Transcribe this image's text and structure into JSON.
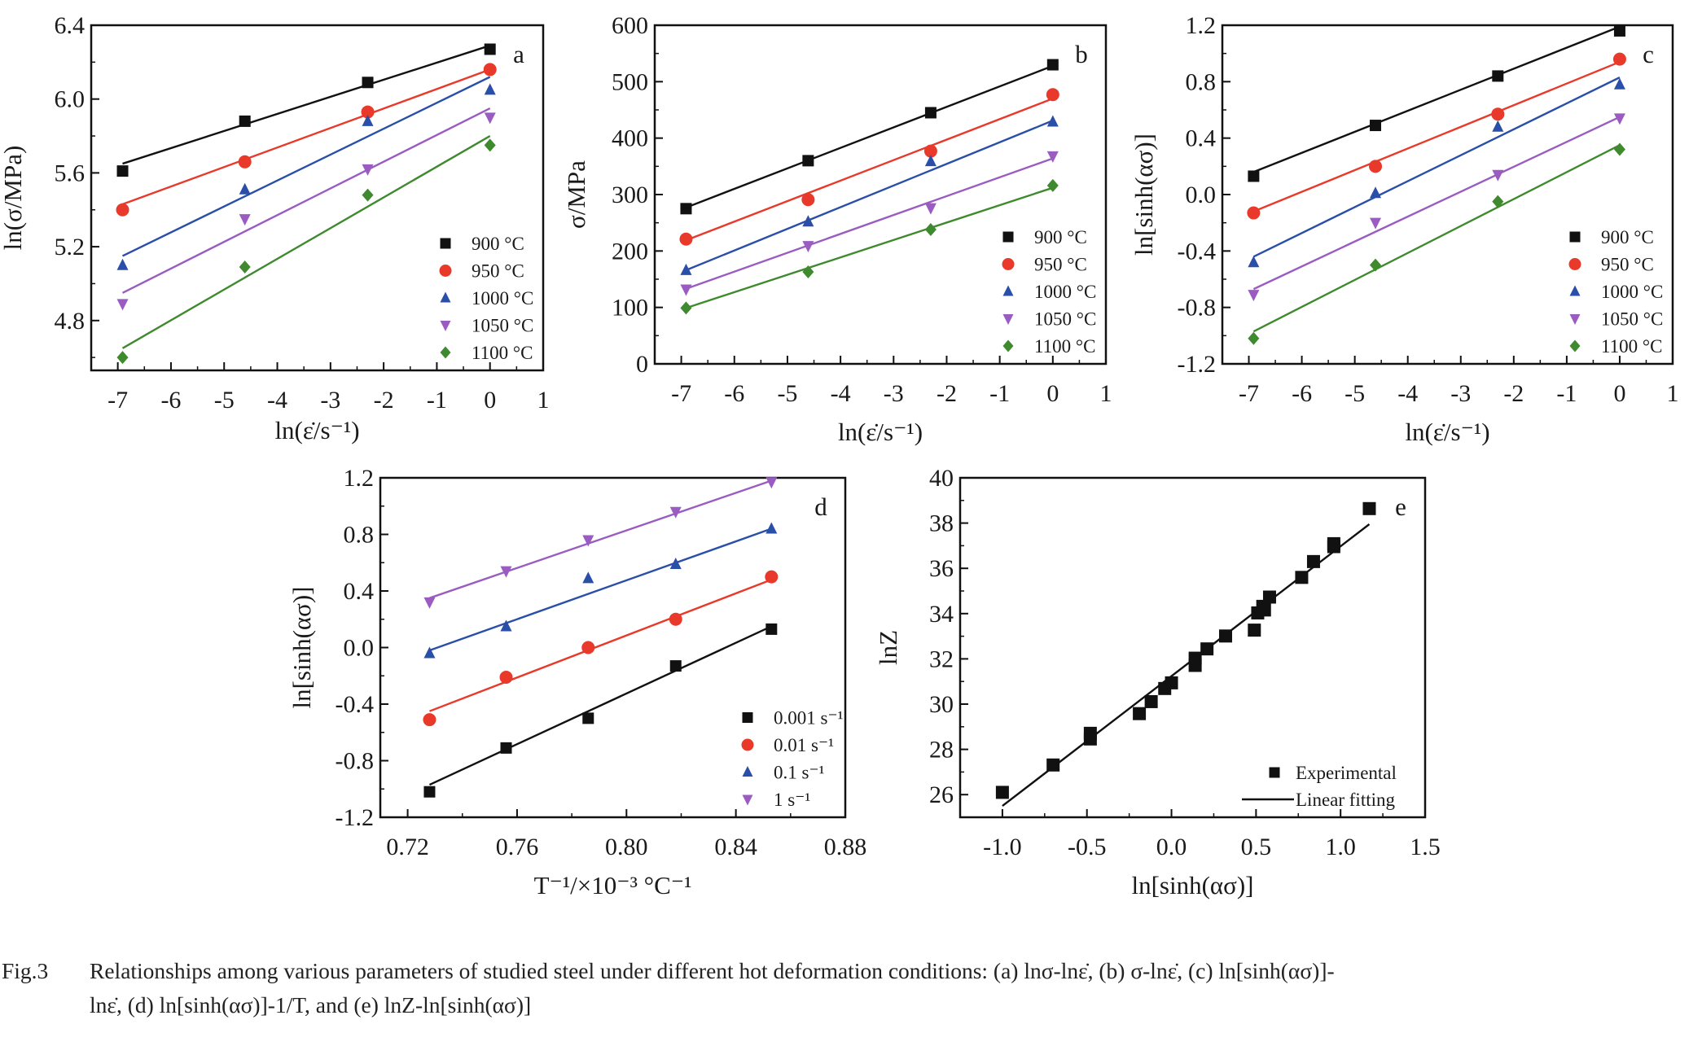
{
  "caption": {
    "figure_number": "Fig.3",
    "line1": "Relationships among various parameters of studied steel under different hot deformation conditions: (a) lnσ-lnε̇, (b) σ-lnε̇, (c) ln[sinh(ασ)]-",
    "line2": "lnε̇, (d) ln[sinh(ασ)]-1/T, and (e) lnZ-ln[sinh(ασ)]"
  },
  "colors": {
    "900": "#111111",
    "950": "#e8392a",
    "1000": "#2a4fa8",
    "1050": "#9a5cc0",
    "1100": "#3f8a2e"
  },
  "chart_data": [
    {
      "id": "a",
      "type": "scatter",
      "panel_label": "a",
      "title": "",
      "xlabel": "ln(ε̇/s⁻¹)",
      "ylabel": "ln(σ/MPa)",
      "xlim": [
        -7.5,
        1
      ],
      "ylim": [
        4.53,
        6.4
      ],
      "xticks": [
        -7,
        -6,
        -5,
        -4,
        -3,
        -2,
        -1,
        0,
        1
      ],
      "xtick_labels": [
        "-7",
        "-6",
        "-5",
        "-4",
        "-3",
        "-2",
        "-1",
        "0",
        "1"
      ],
      "yticks": [
        4.8,
        5.2,
        5.6,
        6.0,
        6.4
      ],
      "ytick_labels": [
        "4.8",
        "5.2",
        "5.6",
        "6.0",
        "6.4"
      ],
      "x_minor": 0.5,
      "y_minor": 0.2,
      "grid": false,
      "legend_position": "bottom-right",
      "x": [
        -6.91,
        -4.61,
        -2.3,
        0.0
      ],
      "series": [
        {
          "name": "900 °C",
          "marker": "square",
          "color_key": "900",
          "values": [
            5.61,
            5.88,
            6.09,
            6.27
          ],
          "fit": [
            [
              -6.91,
              5.65
            ],
            [
              0.0,
              6.29
            ]
          ]
        },
        {
          "name": "950 °C",
          "marker": "circle",
          "color_key": "950",
          "values": [
            5.4,
            5.66,
            5.93,
            6.16
          ],
          "fit": [
            [
              -6.91,
              5.43
            ],
            [
              0.0,
              6.16
            ]
          ]
        },
        {
          "name": "1000 °C",
          "marker": "triangle-up",
          "color_key": "1000",
          "values": [
            5.1,
            5.51,
            5.88,
            6.05
          ],
          "fit": [
            [
              -6.91,
              5.15
            ],
            [
              0.0,
              6.12
            ]
          ]
        },
        {
          "name": "1050 °C",
          "marker": "triangle-down",
          "color_key": "1050",
          "values": [
            4.89,
            5.35,
            5.62,
            5.9
          ],
          "fit": [
            [
              -6.91,
              4.95
            ],
            [
              0.0,
              5.95
            ]
          ]
        },
        {
          "name": "1100 °C",
          "marker": "diamond",
          "color_key": "1100",
          "values": [
            4.6,
            5.09,
            5.48,
            5.75
          ],
          "fit": [
            [
              -6.91,
              4.65
            ],
            [
              0.0,
              5.8
            ]
          ]
        }
      ]
    },
    {
      "id": "b",
      "type": "scatter",
      "panel_label": "b",
      "title": "",
      "xlabel": "ln(ε̇/s⁻¹)",
      "ylabel": "σ/MPa",
      "xlim": [
        -7.5,
        1
      ],
      "ylim": [
        0,
        600
      ],
      "xticks": [
        -7,
        -6,
        -5,
        -4,
        -3,
        -2,
        -1,
        0,
        1
      ],
      "xtick_labels": [
        "-7",
        "-6",
        "-5",
        "-4",
        "-3",
        "-2",
        "-1",
        "0",
        "1"
      ],
      "yticks": [
        0,
        100,
        200,
        300,
        400,
        500,
        600
      ],
      "ytick_labels": [
        "0",
        "100",
        "200",
        "300",
        "400",
        "500",
        "600"
      ],
      "x_minor": 0.5,
      "y_minor": 50,
      "grid": false,
      "legend_position": "bottom-right",
      "x": [
        -6.91,
        -4.61,
        -2.3,
        0.0
      ],
      "series": [
        {
          "name": "900 °C",
          "marker": "square",
          "color_key": "900",
          "values": [
            275,
            360,
            445,
            530
          ],
          "fit": [
            [
              -6.91,
              277
            ],
            [
              0.0,
              528
            ]
          ]
        },
        {
          "name": "950 °C",
          "marker": "circle",
          "color_key": "950",
          "values": [
            221,
            291,
            377,
            477
          ],
          "fit": [
            [
              -6.91,
              219
            ],
            [
              0.0,
              470
            ]
          ]
        },
        {
          "name": "1000 °C",
          "marker": "triangle-up",
          "color_key": "1000",
          "values": [
            166,
            252,
            359,
            429
          ],
          "fit": [
            [
              -6.91,
              166
            ],
            [
              0.0,
              431
            ]
          ]
        },
        {
          "name": "1050 °C",
          "marker": "triangle-down",
          "color_key": "1050",
          "values": [
            132,
            209,
            276,
            368
          ],
          "fit": [
            [
              -6.91,
              133
            ],
            [
              0.0,
              364
            ]
          ]
        },
        {
          "name": "1100 °C",
          "marker": "diamond",
          "color_key": "1100",
          "values": [
            99,
            163,
            238,
            316
          ],
          "fit": [
            [
              -6.91,
              99
            ],
            [
              0.0,
              312
            ]
          ]
        }
      ]
    },
    {
      "id": "c",
      "type": "scatter",
      "panel_label": "c",
      "title": "",
      "xlabel": "ln(ε̇/s⁻¹)",
      "ylabel": "ln[sinh(ασ)]",
      "xlim": [
        -7.5,
        1
      ],
      "ylim": [
        -1.2,
        1.2
      ],
      "xticks": [
        -7,
        -6,
        -5,
        -4,
        -3,
        -2,
        -1,
        0,
        1
      ],
      "xtick_labels": [
        "-7",
        "-6",
        "-5",
        "-4",
        "-3",
        "-2",
        "-1",
        "0",
        "1"
      ],
      "yticks": [
        -1.2,
        -0.8,
        -0.4,
        0.0,
        0.4,
        0.8,
        1.2
      ],
      "ytick_labels": [
        "-1.2",
        "-0.8",
        "-0.4",
        "0.0",
        "0.4",
        "0.8",
        "1.2"
      ],
      "x_minor": 0.5,
      "y_minor": 0.2,
      "grid": false,
      "legend_position": "bottom-right",
      "x": [
        -6.91,
        -4.61,
        -2.3,
        0.0
      ],
      "series": [
        {
          "name": "900 °C",
          "marker": "square",
          "color_key": "900",
          "values": [
            0.13,
            0.49,
            0.84,
            1.16
          ],
          "fit": [
            [
              -6.91,
              0.16
            ],
            [
              0.0,
              1.19
            ]
          ]
        },
        {
          "name": "950 °C",
          "marker": "circle",
          "color_key": "950",
          "values": [
            -0.13,
            0.2,
            0.57,
            0.96
          ],
          "fit": [
            [
              -6.91,
              -0.12
            ],
            [
              0.0,
              0.94
            ]
          ]
        },
        {
          "name": "1000 °C",
          "marker": "triangle-up",
          "color_key": "1000",
          "values": [
            -0.48,
            0.01,
            0.48,
            0.78
          ],
          "fit": [
            [
              -6.91,
              -0.44
            ],
            [
              0.0,
              0.83
            ]
          ]
        },
        {
          "name": "1050 °C",
          "marker": "triangle-down",
          "color_key": "1050",
          "values": [
            -0.71,
            -0.2,
            0.14,
            0.54
          ],
          "fit": [
            [
              -6.91,
              -0.67
            ],
            [
              0.0,
              0.55
            ]
          ]
        },
        {
          "name": "1100 °C",
          "marker": "diamond",
          "color_key": "1100",
          "values": [
            -1.02,
            -0.5,
            -0.05,
            0.32
          ],
          "fit": [
            [
              -6.91,
              -0.97
            ],
            [
              0.0,
              0.35
            ]
          ]
        }
      ]
    },
    {
      "id": "d",
      "type": "scatter",
      "panel_label": "d",
      "title": "",
      "xlabel": "T⁻¹/×10⁻³ °C⁻¹",
      "ylabel": "ln[sinh(ασ)]",
      "xlim": [
        0.71,
        0.88
      ],
      "ylim": [
        -1.2,
        1.2
      ],
      "xticks": [
        0.72,
        0.76,
        0.8,
        0.84,
        0.88
      ],
      "xtick_labels": [
        "0.72",
        "0.76",
        "0.80",
        "0.84",
        "0.88"
      ],
      "yticks": [
        -1.2,
        -0.8,
        -0.4,
        0.0,
        0.4,
        0.8,
        1.2
      ],
      "ytick_labels": [
        "-1.2",
        "-0.8",
        "-0.4",
        "0.0",
        "0.4",
        "0.8",
        "1.2"
      ],
      "x_minor": 0.02,
      "y_minor": 0.2,
      "grid": false,
      "legend_position": "bottom-right",
      "x": [
        0.728,
        0.756,
        0.786,
        0.818,
        0.853
      ],
      "series": [
        {
          "name": "0.001 s⁻¹",
          "marker": "square",
          "color_key": "900",
          "values": [
            -1.02,
            -0.71,
            -0.5,
            -0.13,
            0.13
          ],
          "fit": [
            [
              0.728,
              -0.97
            ],
            [
              0.853,
              0.15
            ]
          ]
        },
        {
          "name": "0.01 s⁻¹",
          "marker": "circle",
          "color_key": "950",
          "values": [
            -0.51,
            -0.21,
            0.0,
            0.2,
            0.5
          ],
          "fit": [
            [
              0.728,
              -0.45
            ],
            [
              0.853,
              0.48
            ]
          ]
        },
        {
          "name": "0.1 s⁻¹",
          "marker": "triangle-up",
          "color_key": "1000",
          "values": [
            -0.04,
            0.15,
            0.49,
            0.59,
            0.84
          ],
          "fit": [
            [
              0.728,
              -0.02
            ],
            [
              0.853,
              0.84
            ]
          ]
        },
        {
          "name": "1 s⁻¹",
          "marker": "triangle-down",
          "color_key": "1050",
          "values": [
            0.32,
            0.54,
            0.76,
            0.96,
            1.17
          ],
          "fit": [
            [
              0.728,
              0.35
            ],
            [
              0.853,
              1.18
            ]
          ]
        }
      ]
    },
    {
      "id": "e",
      "type": "scatter",
      "panel_label": "e",
      "title": "",
      "xlabel": "ln[sinh(ασ)]",
      "ylabel": "lnZ",
      "xlim": [
        -1.25,
        1.5
      ],
      "ylim": [
        25,
        40
      ],
      "xticks": [
        -1.0,
        -0.5,
        0.0,
        0.5,
        1.0,
        1.5
      ],
      "xtick_labels": [
        "-1.0",
        "-0.5",
        "0.0",
        "0.5",
        "1.0",
        "1.5"
      ],
      "yticks": [
        26,
        28,
        30,
        32,
        34,
        36,
        38,
        40
      ],
      "ytick_labels": [
        "26",
        "28",
        "30",
        "32",
        "34",
        "36",
        "38",
        "40"
      ],
      "x_minor": 0.25,
      "y_minor": 1,
      "grid": false,
      "legend_position": "bottom-right",
      "series": [
        {
          "name": "Experimental",
          "marker": "square",
          "color_key": "900",
          "points": [
            [
              -1.0,
              26.1
            ],
            [
              -0.7,
              27.31
            ],
            [
              -0.48,
              28.46
            ],
            [
              -0.48,
              28.71
            ],
            [
              -0.19,
              29.58
            ],
            [
              -0.12,
              30.11
            ],
            [
              -0.04,
              30.69
            ],
            [
              0.0,
              30.94
            ],
            [
              0.14,
              31.71
            ],
            [
              0.14,
              32.03
            ],
            [
              0.21,
              32.44
            ],
            [
              0.32,
              33.01
            ],
            [
              0.49,
              33.27
            ],
            [
              0.51,
              34.03
            ],
            [
              0.55,
              34.16
            ],
            [
              0.54,
              34.32
            ],
            [
              0.58,
              34.73
            ],
            [
              0.77,
              35.6
            ],
            [
              0.84,
              36.3
            ],
            [
              0.96,
              36.96
            ],
            [
              0.96,
              37.09
            ],
            [
              1.17,
              38.64
            ]
          ]
        },
        {
          "name": "Linear fitting",
          "marker": "line",
          "color_key": "900",
          "fit": [
            [
              -1.0,
              25.5
            ],
            [
              1.17,
              37.95
            ]
          ]
        }
      ]
    }
  ]
}
